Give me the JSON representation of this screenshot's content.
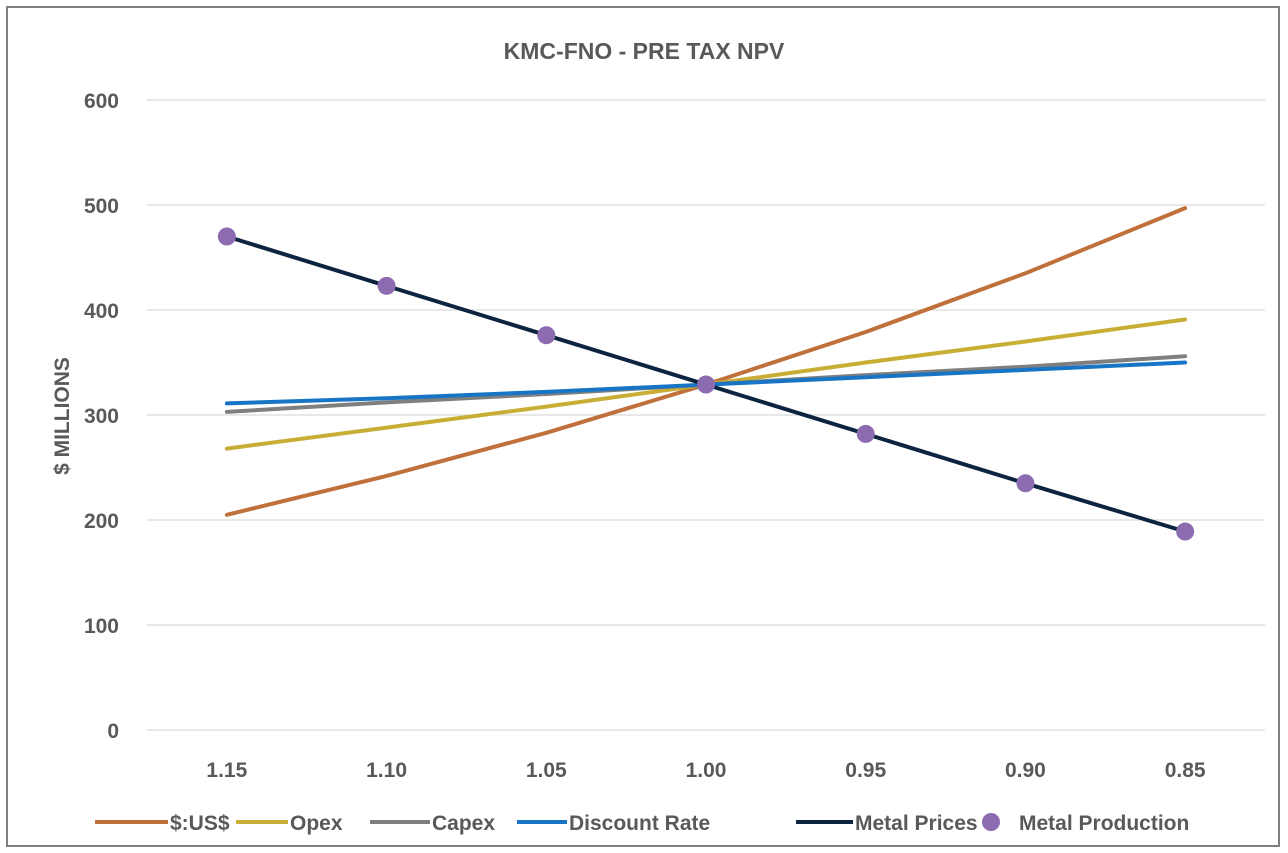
{
  "chart_data": {
    "type": "line",
    "title": "KMC-FNO - PRE TAX NPV",
    "xlabel": "",
    "ylabel": "$ MILLIONS",
    "categories": [
      "1.15",
      "1.10",
      "1.05",
      "1.00",
      "0.95",
      "0.90",
      "0.85"
    ],
    "ylim": [
      0,
      600
    ],
    "yticks": [
      "0",
      "100",
      "200",
      "300",
      "400",
      "500",
      "600"
    ],
    "grid": true,
    "legend_position": "bottom",
    "series": [
      {
        "name": "$:US$",
        "kind": "line",
        "color": "#C0703A",
        "values": [
          205,
          242,
          283,
          329,
          379,
          435,
          497
        ]
      },
      {
        "name": "Opex",
        "kind": "line",
        "color": "#C9AE36",
        "values": [
          268,
          288,
          308,
          329,
          350,
          370,
          391
        ]
      },
      {
        "name": "Capex",
        "kind": "line",
        "color": "#7F7F7F",
        "values": [
          303,
          312,
          320,
          329,
          338,
          346,
          356
        ]
      },
      {
        "name": "Discount Rate",
        "kind": "line",
        "color": "#1875C6",
        "values": [
          311,
          316,
          322,
          329,
          336,
          343,
          350
        ]
      },
      {
        "name": "Metal Prices",
        "kind": "line",
        "color": "#0D2440",
        "values": [
          470,
          423,
          376,
          329,
          282,
          235,
          189
        ]
      },
      {
        "name": "Metal Production",
        "kind": "marker",
        "color": "#8C6BB1",
        "values": [
          470,
          423,
          376,
          329,
          282,
          235,
          189
        ]
      }
    ]
  }
}
